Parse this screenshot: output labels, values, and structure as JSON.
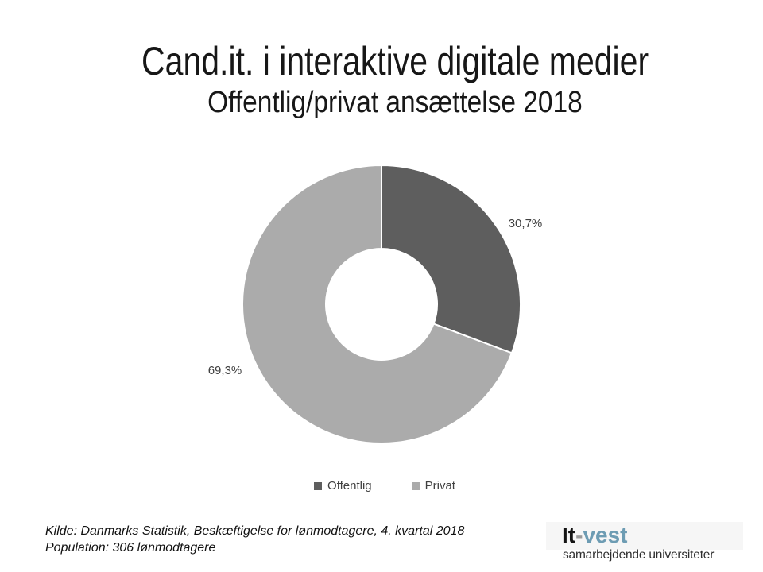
{
  "slide": {
    "title": "Cand.it. i interaktive digitale medier",
    "subtitle": "Offentlig/privat ansættelse 2018"
  },
  "chart_data": {
    "type": "pie",
    "subtype": "donut",
    "title": "Cand.it. i interaktive digitale medier — Offentlig/privat ansættelse 2018",
    "categories": [
      "Offentlig",
      "Privat"
    ],
    "values": [
      30.7,
      69.3
    ],
    "data_labels": [
      "30,7%",
      "69,3%"
    ],
    "colors": [
      "#5e5e5e",
      "#ababab"
    ],
    "start_angle_deg": 0,
    "direction": "clockwise",
    "inner_radius_ratio": 0.4,
    "legend_position": "bottom",
    "grid": false
  },
  "footer": {
    "source_line1": "Kilde: Danmarks Statistik, Beskæftigelse for lønmodtagere, 4. kvartal 2018",
    "source_line2": "Population: 306 lønmodtagere"
  },
  "logo": {
    "brand_black": "It",
    "brand_sep": "-",
    "brand_blue": "vest",
    "tagline": "samarbejdende universiteter",
    "blue_hex": "#6d9cb3"
  }
}
